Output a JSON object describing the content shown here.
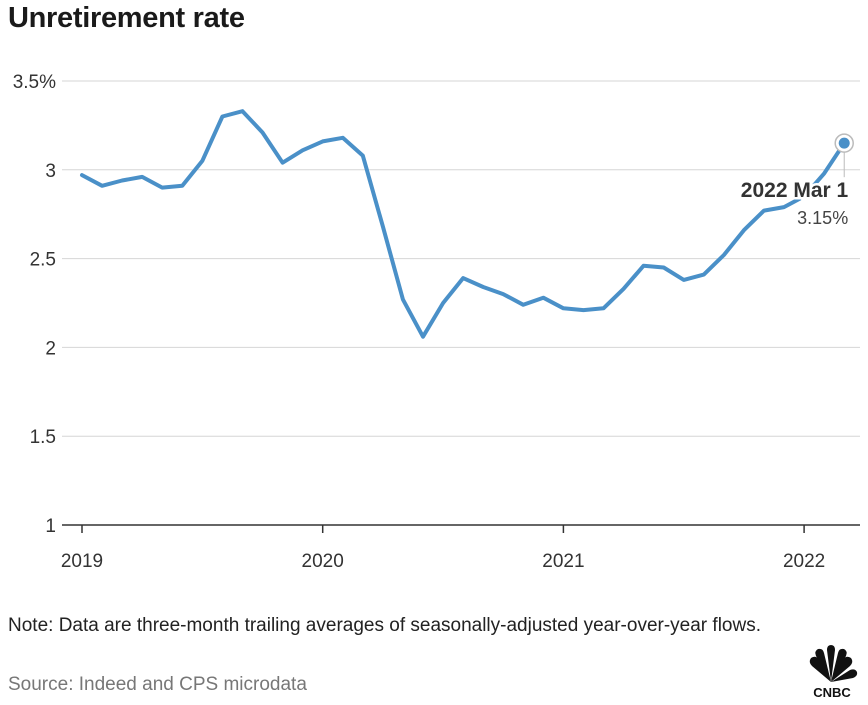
{
  "chart_data": {
    "type": "line",
    "title": "Unretirement rate",
    "xlabel": "",
    "ylabel": "",
    "y_ticks": [
      "1",
      "1.5",
      "2",
      "2.5",
      "3",
      "3.5%"
    ],
    "y_tick_values": [
      1,
      1.5,
      2,
      2.5,
      3,
      3.5
    ],
    "ylim": [
      1,
      3.5
    ],
    "x_ticks": [
      "2019",
      "2020",
      "2021",
      "2022"
    ],
    "x_tick_dates": [
      "2019-01",
      "2020-01",
      "2021-01",
      "2022-01"
    ],
    "grid": "horizontal",
    "series": [
      {
        "color": "#4a90c8",
        "x": [
          "2019-01",
          "2019-02",
          "2019-03",
          "2019-04",
          "2019-05",
          "2019-06",
          "2019-07",
          "2019-08",
          "2019-09",
          "2019-10",
          "2019-11",
          "2019-12",
          "2020-01",
          "2020-02",
          "2020-03",
          "2020-04",
          "2020-05",
          "2020-06",
          "2020-07",
          "2020-08",
          "2020-09",
          "2020-10",
          "2020-11",
          "2020-12",
          "2021-01",
          "2021-02",
          "2021-03",
          "2021-04",
          "2021-05",
          "2021-06",
          "2021-07",
          "2021-08",
          "2021-09",
          "2021-10",
          "2021-11",
          "2021-12",
          "2022-01",
          "2022-02",
          "2022-03"
        ],
        "values": [
          2.97,
          2.91,
          2.94,
          2.96,
          2.9,
          2.91,
          3.05,
          3.3,
          3.33,
          3.21,
          3.04,
          3.11,
          3.16,
          3.18,
          3.08,
          2.68,
          2.27,
          2.06,
          2.25,
          2.39,
          2.34,
          2.3,
          2.24,
          2.28,
          2.22,
          2.21,
          2.22,
          2.33,
          2.46,
          2.45,
          2.38,
          2.41,
          2.52,
          2.66,
          2.77,
          2.79,
          2.85,
          2.98,
          3.15
        ]
      }
    ],
    "annotation": {
      "label": "2022 Mar 1",
      "value_label": "3.15%",
      "x": "2022-03",
      "value": 3.15
    }
  },
  "note": "Note: Data are three-month trailing averages of seasonally-adjusted year-over-year flows.",
  "source": "Source: Indeed and CPS microdata",
  "logo": {
    "icon": "cnbc-peacock-icon",
    "text": "CNBC"
  }
}
